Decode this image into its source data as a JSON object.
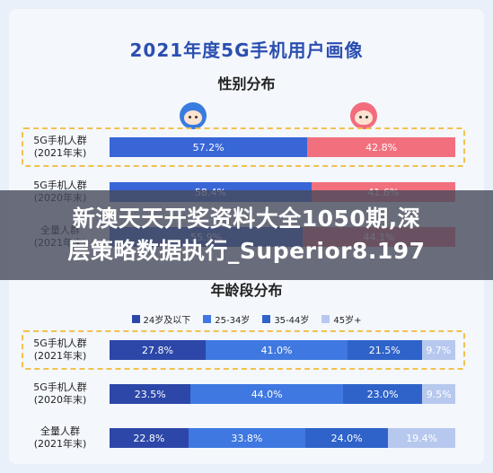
{
  "main_title": "2021年度5G手机用户画像",
  "banner": {
    "line1": "新澳天天开奖资料大全1050期,深",
    "line2": "层策略数据执行_Superior8.197"
  },
  "chart_data": [
    {
      "type": "bar",
      "stacked": true,
      "orientation": "horizontal",
      "title": "性别分布",
      "categories": [
        {
          "line1": "5G手机人群",
          "line2": "(2021年末)"
        },
        {
          "line1": "5G手机人群",
          "line2": "(2020年末)"
        },
        {
          "line1": "全量人群",
          "line2": "(2021年末)"
        }
      ],
      "series": [
        {
          "name": "",
          "color": "#3866d6",
          "values": [
            57.2,
            58.4,
            55.9
          ],
          "labels": [
            "57.2%",
            "58.4%",
            "55.9%"
          ]
        },
        {
          "name": "",
          "color": "#f2707e",
          "values": [
            42.8,
            41.6,
            44.1
          ],
          "labels": [
            "42.8%",
            "41.6%",
            "44.1%"
          ]
        }
      ],
      "highlight_row": 0,
      "xlim": [
        0,
        100
      ]
    },
    {
      "type": "bar",
      "stacked": true,
      "orientation": "horizontal",
      "title": "年龄段分布",
      "categories": [
        {
          "line1": "5G手机人群",
          "line2": "(2021年末)"
        },
        {
          "line1": "5G手机人群",
          "line2": "(2020年末)"
        },
        {
          "line1": "全量人群",
          "line2": "(2021年末)"
        }
      ],
      "series": [
        {
          "name": "24岁及以下",
          "color": "#2c47a8",
          "values": [
            27.8,
            23.5,
            22.8
          ],
          "labels": [
            "27.8%",
            "23.5%",
            "22.8%"
          ]
        },
        {
          "name": "25-34岁",
          "color": "#3f78e0",
          "values": [
            41.0,
            44.0,
            33.8
          ],
          "labels": [
            "41.0%",
            "44.0%",
            "33.8%"
          ]
        },
        {
          "name": "35-44岁",
          "color": "#2f63c9",
          "values": [
            21.5,
            23.0,
            24.0
          ],
          "labels": [
            "21.5%",
            "23.0%",
            "24.0%"
          ]
        },
        {
          "name": "45岁+",
          "color": "#b7c8ee",
          "values": [
            9.7,
            9.5,
            19.4
          ],
          "labels": [
            "9.7%",
            "9.5%",
            "19.4%"
          ]
        }
      ],
      "legend_position": "top",
      "highlight_row": 0,
      "xlim": [
        0,
        100
      ]
    }
  ]
}
